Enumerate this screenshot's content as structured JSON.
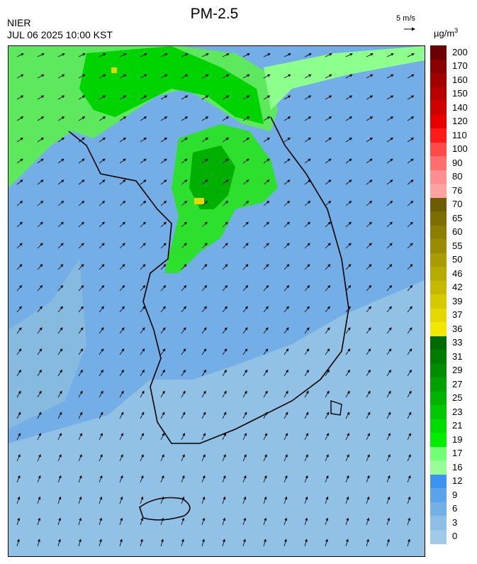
{
  "header": {
    "agency": "NIER",
    "timestamp": "JUL 06 2025 10:00 KST",
    "title": "PM-2.5",
    "wind_reference": "5 m/s",
    "unit_base": "µg/m",
    "unit_exp": "3"
  },
  "legend": {
    "ticks": [
      "200",
      "170",
      "160",
      "150",
      "140",
      "120",
      "110",
      "100",
      "90",
      "80",
      "76",
      "70",
      "65",
      "60",
      "55",
      "50",
      "46",
      "42",
      "39",
      "37",
      "36",
      "33",
      "31",
      "29",
      "27",
      "25",
      "23",
      "21",
      "19",
      "17",
      "16",
      "12",
      "9",
      "6",
      "3",
      "0"
    ],
    "colors": [
      "#6a0000",
      "#880000",
      "#a00000",
      "#b80000",
      "#d00000",
      "#e80000",
      "#ff1a1a",
      "#ff4a4a",
      "#ff6e6e",
      "#ff8e8e",
      "#ffa2a2",
      "#6b5d00",
      "#7c6e00",
      "#8c7e00",
      "#9a8c00",
      "#a99c00",
      "#b7ab00",
      "#c6ba00",
      "#d5c900",
      "#e3d800",
      "#f2e700",
      "#006b00",
      "#007c00",
      "#008e00",
      "#00a000",
      "#00b400",
      "#00c800",
      "#00dc00",
      "#00ef00",
      "#73ff73",
      "#98ff98",
      "#3d94f0",
      "#5ba4ec",
      "#73b0e6",
      "#8cbee6",
      "#9fcbe8"
    ]
  },
  "map": {
    "region": "Korean Peninsula",
    "wind_direction": "southwest to northeast",
    "regions": [
      {
        "name": "northwest-green-zone",
        "level": "16-19"
      },
      {
        "name": "central-green-zone",
        "level": "21-29"
      },
      {
        "name": "hotspot-north",
        "level": "36-39"
      },
      {
        "name": "hotspot-central",
        "level": "36-39"
      },
      {
        "name": "east-coast-green-band",
        "level": "16-19"
      }
    ]
  }
}
